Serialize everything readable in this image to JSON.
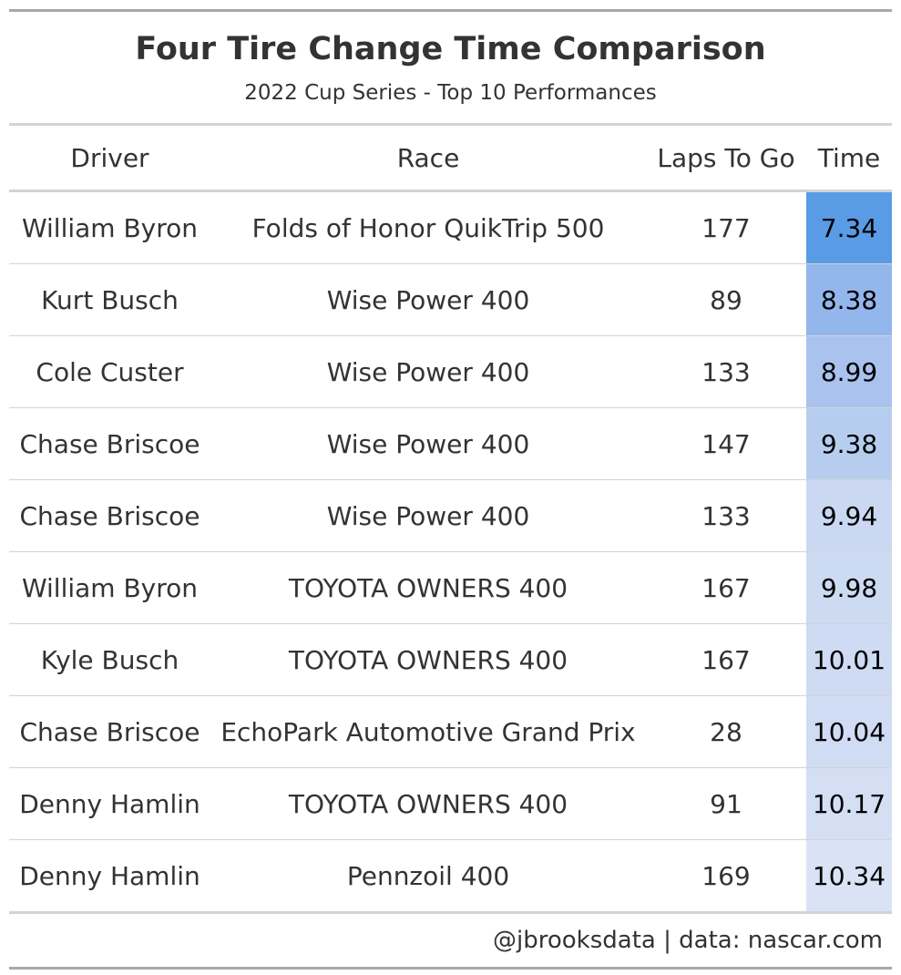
{
  "title": "Four Tire Change Time Comparison",
  "subtitle": "2022 Cup Series - Top 10 Performances",
  "source_note": "@jbrooksdata | data: nascar.com",
  "chart_data": {
    "type": "table",
    "columns": [
      "Driver",
      "Race",
      "Laps To Go",
      "Time"
    ],
    "rows": [
      {
        "driver": "William Byron",
        "race": "Folds of Honor QuikTrip 500",
        "laps_to_go": "177",
        "time": "7.34",
        "color": "#5a9be6"
      },
      {
        "driver": "Kurt Busch",
        "race": "Wise Power 400",
        "laps_to_go": "89",
        "time": "8.38",
        "color": "#93b6ec"
      },
      {
        "driver": "Cole Custer",
        "race": "Wise Power 400",
        "laps_to_go": "133",
        "time": "8.99",
        "color": "#a9c3ee"
      },
      {
        "driver": "Chase Briscoe",
        "race": "Wise Power 400",
        "laps_to_go": "147",
        "time": "9.38",
        "color": "#b7cdf0"
      },
      {
        "driver": "Chase Briscoe",
        "race": "Wise Power 400",
        "laps_to_go": "133",
        "time": "9.94",
        "color": "#cad8f2"
      },
      {
        "driver": "William Byron",
        "race": "TOYOTA OWNERS 400",
        "laps_to_go": "167",
        "time": "9.98",
        "color": "#ccdaf2"
      },
      {
        "driver": "Kyle Busch",
        "race": "TOYOTA OWNERS 400",
        "laps_to_go": "167",
        "time": "10.01",
        "color": "#cedbf3"
      },
      {
        "driver": "Chase Briscoe",
        "race": "EchoPark Automotive Grand Prix",
        "laps_to_go": "28",
        "time": "10.04",
        "color": "#cfdcf3"
      },
      {
        "driver": "Denny Hamlin",
        "race": "TOYOTA OWNERS 400",
        "laps_to_go": "91",
        "time": "10.17",
        "color": "#d4dff4"
      },
      {
        "driver": "Denny Hamlin",
        "race": "Pennzoil 400",
        "laps_to_go": "169",
        "time": "10.34",
        "color": "#dae3f5"
      }
    ]
  }
}
